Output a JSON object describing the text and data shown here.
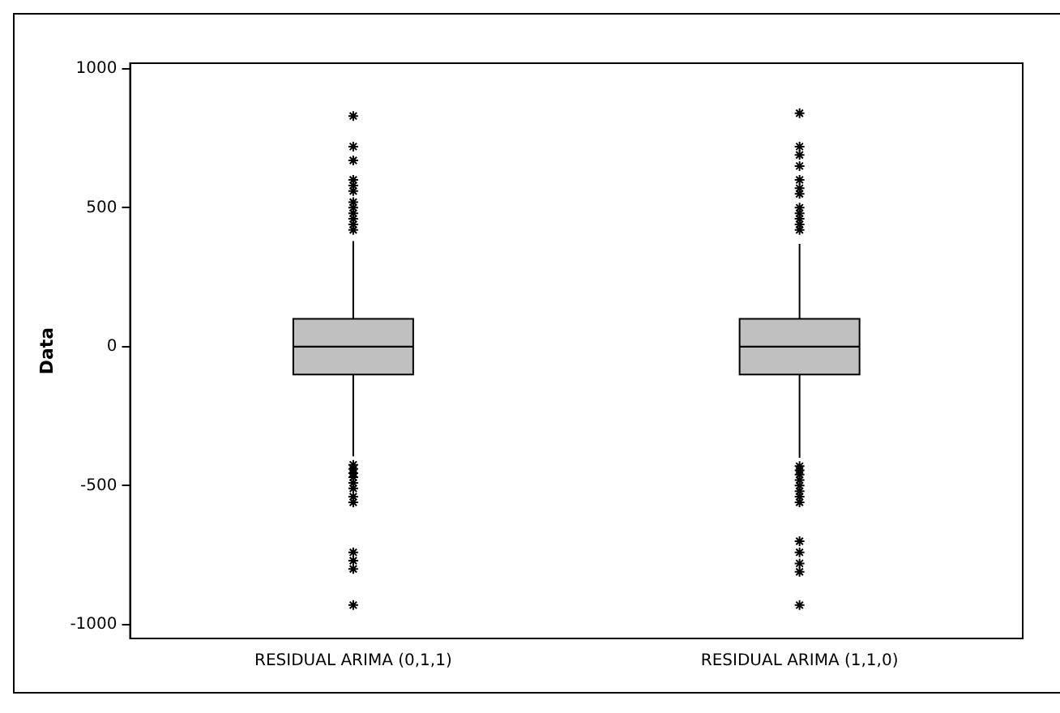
{
  "chart_data": {
    "type": "box",
    "ylabel": "Data",
    "categories": [
      "RESIDUAL ARIMA (0,1,1)",
      "RESIDUAL ARIMA (1,1,0)"
    ],
    "color": "#c0c0c0",
    "marker": "star",
    "grid": false,
    "ylim": [
      -1050,
      1020
    ],
    "yticks": [
      -1000,
      -500,
      0,
      500,
      1000
    ],
    "boxes": [
      {
        "low": -395,
        "q1": -100,
        "median": 0,
        "q3": 100,
        "high": 380,
        "outliers": [
          830,
          720,
          670,
          600,
          580,
          560,
          520,
          500,
          480,
          460,
          440,
          420,
          -425,
          -440,
          -455,
          -470,
          -490,
          -510,
          -540,
          -560,
          -740,
          -770,
          -800,
          -930
        ]
      },
      {
        "low": -400,
        "q1": -100,
        "median": 0,
        "q3": 100,
        "high": 370,
        "outliers": [
          840,
          720,
          690,
          650,
          600,
          570,
          550,
          500,
          480,
          460,
          440,
          420,
          -430,
          -445,
          -460,
          -480,
          -500,
          -520,
          -540,
          -560,
          -700,
          -740,
          -780,
          -810,
          -930
        ]
      }
    ]
  }
}
